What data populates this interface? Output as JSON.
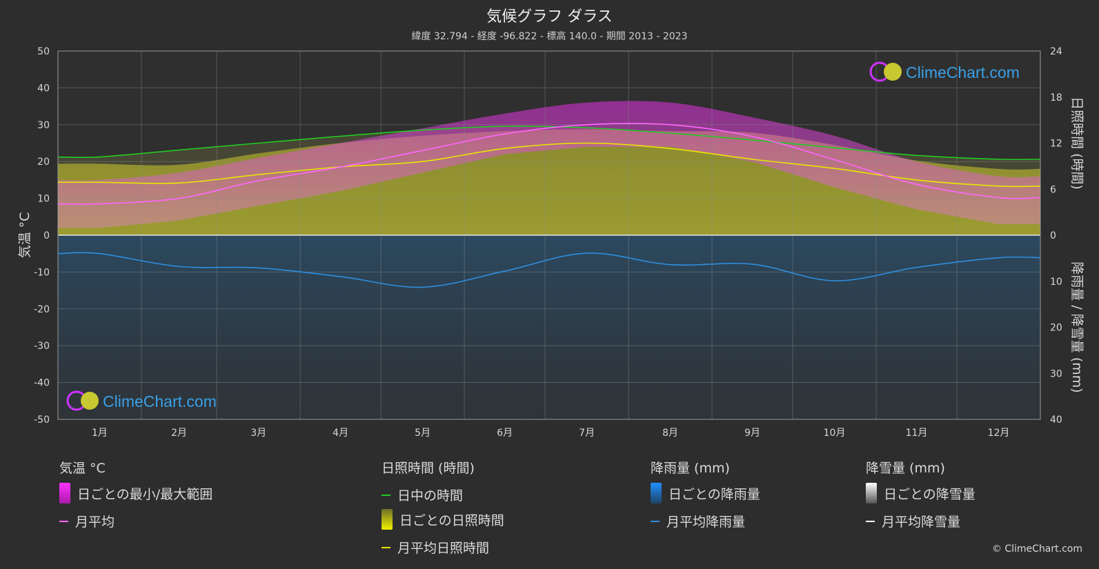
{
  "header": {
    "title": "気候グラフ ダラス",
    "subtitle": "緯度 32.794 - 経度 -96.822 - 標高 140.0 - 期間 2013 - 2023"
  },
  "watermark": "ClimeChart.com",
  "copyright": "© ClimeChart.com",
  "chart_data": {
    "type": "line",
    "categories": [
      "1月",
      "2月",
      "3月",
      "4月",
      "5月",
      "6月",
      "7月",
      "8月",
      "9月",
      "10月",
      "11月",
      "12月"
    ],
    "y_left": {
      "label": "気温 °C",
      "range": [
        -50,
        50
      ],
      "ticks": [
        50,
        40,
        30,
        20,
        10,
        0,
        -10,
        -20,
        -30,
        -40,
        -50
      ]
    },
    "y_right_top": {
      "label": "日照時間 (時間)",
      "range": [
        0,
        24
      ],
      "ticks": [
        24,
        18,
        12,
        6,
        0
      ]
    },
    "y_right_bottom": {
      "label": "降雨量 / 降雪量 (mm)",
      "range": [
        0,
        40
      ],
      "ticks": [
        0,
        10,
        20,
        30,
        40
      ]
    },
    "grid": true,
    "series": [
      {
        "name": "日中の時間",
        "axis": "sunshine_hours",
        "color": "#22cc22",
        "values": [
          10.2,
          11.1,
          12.0,
          12.9,
          13.7,
          14.2,
          14.0,
          13.3,
          12.4,
          11.4,
          10.4,
          9.9
        ]
      },
      {
        "name": "月平均日照時間",
        "axis": "sunshine_hours",
        "color": "#e8e800",
        "values": [
          6.9,
          6.8,
          7.9,
          8.9,
          9.6,
          11.3,
          12.0,
          11.3,
          9.9,
          8.7,
          7.2,
          6.4
        ]
      },
      {
        "name": "月平均",
        "axis": "temperature_c",
        "color": "#ff66ff",
        "values": [
          8.5,
          10.0,
          14.8,
          18.5,
          23.0,
          27.5,
          30.0,
          30.0,
          26.8,
          20.5,
          13.8,
          10.2
        ]
      },
      {
        "name": "月平均降雨量",
        "axis": "precipitation_mm",
        "color": "#2d8fe0",
        "values": [
          4.0,
          6.8,
          7.1,
          9.0,
          11.3,
          7.8,
          3.9,
          6.4,
          6.3,
          9.9,
          7.0,
          4.9
        ]
      },
      {
        "name": "月平均降雪量",
        "axis": "precipitation_mm",
        "color": "#ffffff",
        "values": [
          0,
          0,
          0,
          0,
          0,
          0,
          0,
          0,
          0,
          0,
          0,
          0
        ]
      }
    ],
    "daily_temp_range": {
      "name": "日ごとの最小/最大範囲",
      "min": [
        2,
        4,
        8,
        12,
        17,
        22,
        24,
        24,
        20,
        13,
        7,
        3
      ],
      "max": [
        15,
        17,
        21,
        25,
        29,
        33,
        36,
        36,
        32,
        27,
        20,
        16
      ],
      "color": "#e22ee2"
    }
  },
  "legend": {
    "temperature": {
      "title": "気温 °C",
      "items": [
        "日ごとの最小/最大範囲",
        "月平均"
      ]
    },
    "sunshine": {
      "title": "日照時間 (時間)",
      "items": [
        "日中の時間",
        "日ごとの日照時間",
        "月平均日照時間"
      ]
    },
    "rain": {
      "title": "降雨量 (mm)",
      "items": [
        "日ごとの降雨量",
        "月平均降雨量"
      ]
    },
    "snow": {
      "title": "降雪量 (mm)",
      "items": [
        "日ごとの降雪量",
        "月平均降雪量"
      ]
    }
  }
}
